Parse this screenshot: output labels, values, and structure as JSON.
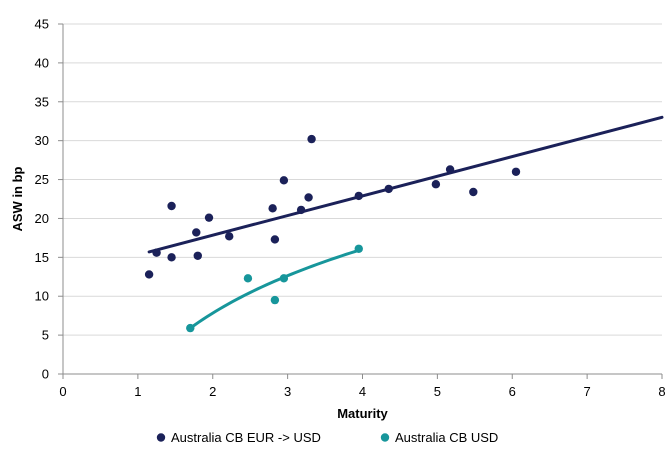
{
  "chart_data": {
    "type": "scatter",
    "title": "",
    "xlabel": "Maturity",
    "ylabel": "ASW in bp",
    "xlim": [
      0,
      8
    ],
    "ylim": [
      0,
      45
    ],
    "x_ticks": [
      "0",
      "1",
      "2",
      "3",
      "4",
      "5",
      "6",
      "7",
      "8"
    ],
    "y_ticks": [
      "0",
      "5",
      "10",
      "15",
      "20",
      "25",
      "30",
      "35",
      "40",
      "45"
    ],
    "grid": "horizontal",
    "legend_position": "bottom",
    "series": [
      {
        "name": "Australia CB EUR -> USD",
        "color": "#1b2159",
        "points": [
          [
            1.15,
            12.8
          ],
          [
            1.25,
            15.6
          ],
          [
            1.45,
            21.6
          ],
          [
            1.45,
            15.0
          ],
          [
            1.78,
            18.2
          ],
          [
            1.8,
            15.2
          ],
          [
            1.95,
            20.1
          ],
          [
            2.22,
            17.7
          ],
          [
            2.8,
            21.3
          ],
          [
            2.83,
            17.3
          ],
          [
            2.95,
            24.9
          ],
          [
            3.18,
            21.1
          ],
          [
            3.28,
            22.7
          ],
          [
            3.32,
            30.2
          ],
          [
            3.95,
            22.9
          ],
          [
            4.35,
            23.8
          ],
          [
            4.98,
            24.4
          ],
          [
            5.17,
            26.3
          ],
          [
            5.48,
            23.4
          ],
          [
            6.05,
            26.0
          ]
        ],
        "trendline": [
          [
            1.15,
            15.7
          ],
          [
            8.0,
            33.0
          ]
        ]
      },
      {
        "name": "Australia CB USD",
        "color": "#17969b",
        "points": [
          [
            1.7,
            5.9
          ],
          [
            2.47,
            12.3
          ],
          [
            2.83,
            9.5
          ],
          [
            2.95,
            12.3
          ],
          [
            3.95,
            16.1
          ]
        ],
        "trendline_type": "log",
        "trendline_range": [
          1.7,
          3.95
        ],
        "trendline_ends": [
          5.9,
          15.9
        ]
      }
    ]
  }
}
